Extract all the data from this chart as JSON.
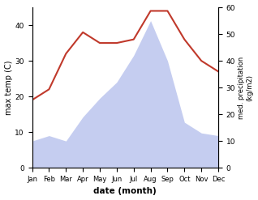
{
  "months": [
    "Jan",
    "Feb",
    "Mar",
    "Apr",
    "May",
    "Jun",
    "Jul",
    "Aug",
    "Sep",
    "Oct",
    "Nov",
    "Dec"
  ],
  "temperature": [
    19,
    22,
    32,
    38,
    35,
    35,
    36,
    44,
    44,
    36,
    30,
    27
  ],
  "precipitation": [
    10,
    12,
    10,
    19,
    26,
    32,
    42,
    55,
    40,
    17,
    13,
    12
  ],
  "temp_color": "#c0392b",
  "precip_fill_color": "#c5cdf0",
  "ylabel_left": "max temp (C)",
  "ylabel_right": "med. precipitation\n(kg/m2)",
  "xlabel": "date (month)",
  "ylim_left": [
    0,
    45
  ],
  "ylim_right": [
    0,
    60
  ],
  "yticks_left": [
    0,
    10,
    20,
    30,
    40
  ],
  "yticks_right": [
    0,
    10,
    20,
    30,
    40,
    50,
    60
  ],
  "figsize": [
    3.18,
    2.47
  ],
  "dpi": 100
}
